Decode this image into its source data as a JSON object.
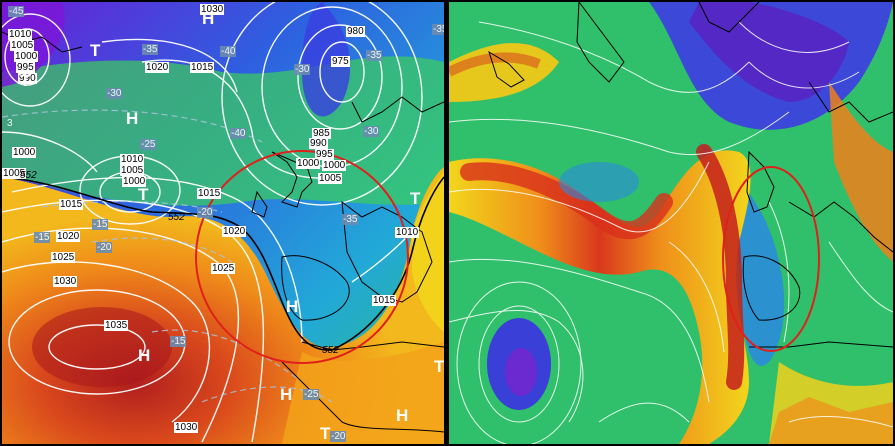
{
  "left_map": {
    "isobar_labels": [
      "1010",
      "1005",
      "1000",
      "995",
      "990",
      "1020",
      "1015",
      "1030",
      "980",
      "975",
      "985",
      "990",
      "995",
      "1000",
      "1000",
      "1005",
      "1010",
      "1005",
      "1000",
      "1000",
      "1005",
      "1015",
      "1020",
      "1015",
      "1025",
      "1020",
      "1025",
      "1030",
      "1035",
      "1015",
      "1030",
      "1010"
    ],
    "temperature_labels": [
      "-45",
      "-35",
      "-40",
      "-35",
      "-30",
      "-40",
      "-30",
      "-30",
      "-35",
      "-25",
      "-20",
      "-15",
      "-15",
      "-20",
      "-35",
      "-15",
      "-25",
      "-20"
    ],
    "pressure_centers": [
      "H",
      "T",
      "H",
      "T",
      "T",
      "H",
      "H",
      "H",
      "T",
      "H",
      "T",
      "T"
    ],
    "thickness_labels": [
      "552",
      "552",
      "552"
    ],
    "stray_label": "3"
  },
  "colors": {
    "accent_circle": "#e0201b",
    "isobar": "#ffffff",
    "coast": "#000000",
    "divider": "#000000"
  }
}
